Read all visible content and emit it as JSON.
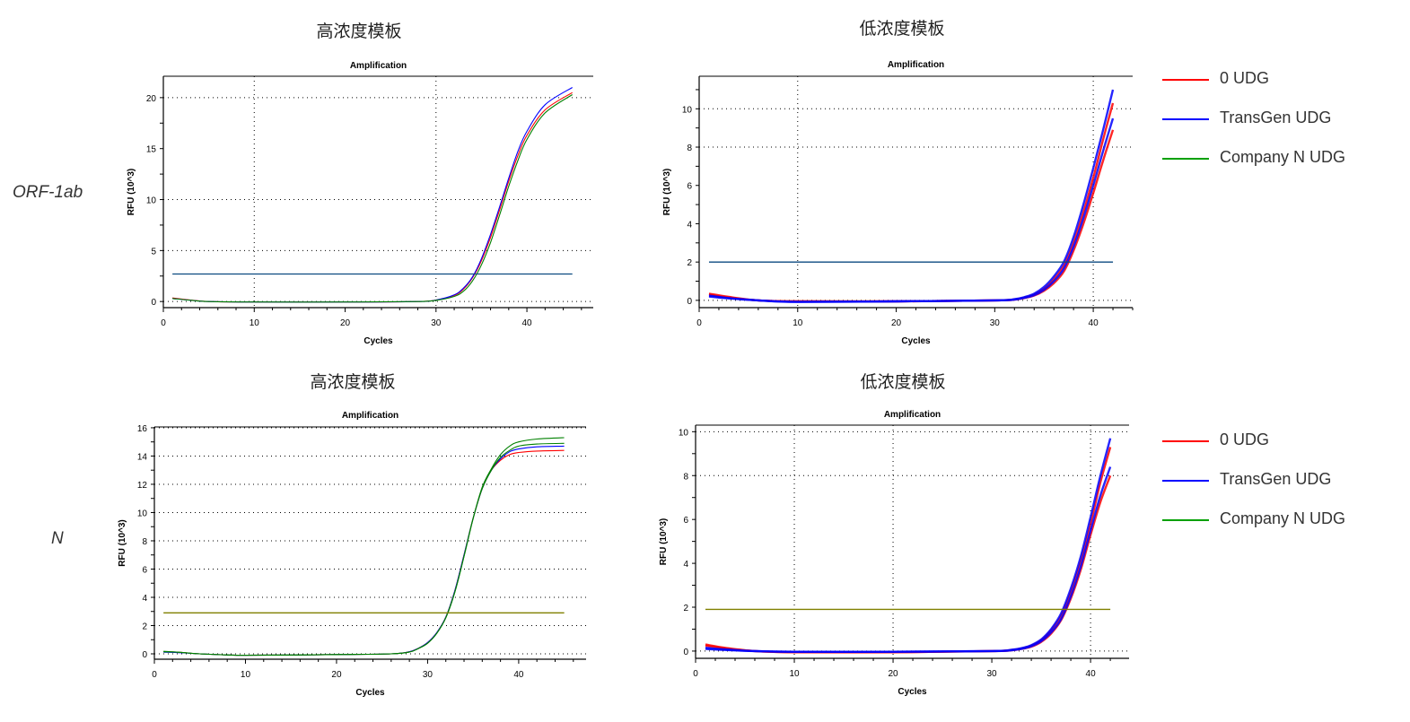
{
  "titles": {
    "high": "高浓度模板",
    "low": "低浓度模板"
  },
  "row_labels": [
    "ORF-1ab",
    "N"
  ],
  "legend": [
    {
      "label": "0 UDG",
      "color": "#ff0000"
    },
    {
      "label": "TransGen UDG",
      "color": "#0000ff"
    },
    {
      "label": "Company N UDG",
      "color": "#00a000"
    }
  ],
  "chart_data": [
    {
      "type": "line",
      "title": "Amplification",
      "xlabel": "Cycles",
      "ylabel": "RFU (10^3)",
      "section_title": "高浓度模板",
      "row": "ORF-1ab",
      "xlim": [
        0,
        47.3
      ],
      "ylim": [
        -0.6,
        22.1
      ],
      "xticks": [
        0,
        10,
        20,
        30,
        40
      ],
      "yticks": [
        0,
        5,
        10,
        15,
        20
      ],
      "xgrid": [
        10,
        30
      ],
      "ygrid": [
        0,
        5,
        10,
        20
      ],
      "threshold": 2.7,
      "threshold_color": "#0b4a80",
      "x": [
        1,
        3,
        5,
        10,
        20,
        28,
        30,
        32,
        33,
        34,
        35,
        36,
        37,
        38,
        39,
        40,
        42,
        45
      ],
      "series": [
        {
          "color": "#ff0000",
          "replicates": [
            [
              0.35,
              0.15,
              0,
              -0.05,
              -0.05,
              0,
              0.15,
              0.6,
              1.2,
              2.3,
              4.0,
              6.3,
              9.0,
              11.8,
              14.3,
              16.3,
              18.8,
              20.5
            ]
          ]
        },
        {
          "color": "#0000ff",
          "replicates": [
            [
              0.3,
              0.12,
              0,
              -0.05,
              -0.05,
              0,
              0.15,
              0.65,
              1.3,
              2.4,
              4.2,
              6.6,
              9.3,
              12.1,
              14.7,
              16.7,
              19.3,
              21.0
            ]
          ]
        },
        {
          "color": "#008000",
          "replicates": [
            [
              0.3,
              0.12,
              0,
              -0.05,
              -0.05,
              0,
              0.12,
              0.5,
              1.0,
              2.0,
              3.6,
              5.8,
              8.5,
              11.3,
              13.8,
              15.9,
              18.5,
              20.3
            ]
          ]
        }
      ]
    },
    {
      "type": "line",
      "title": "Amplification",
      "xlabel": "Cycles",
      "ylabel": "RFU (10^3)",
      "section_title": "低浓度模板",
      "row": "ORF-1ab",
      "xlim": [
        0,
        44
      ],
      "ylim": [
        -0.38,
        11.7
      ],
      "xticks": [
        0,
        10,
        20,
        30,
        40
      ],
      "yticks": [
        0,
        2,
        4,
        6,
        8,
        10
      ],
      "xgrid": [
        10,
        40
      ],
      "ygrid": [
        0,
        8,
        10
      ],
      "threshold": 2.0,
      "threshold_color": "#0b4a80",
      "x": [
        1,
        3,
        6,
        10,
        20,
        30,
        32,
        33,
        34,
        35,
        36,
        37,
        38,
        39,
        40,
        41,
        42
      ],
      "series": [
        {
          "color": "#ff0000",
          "replicates": [
            [
              0.3,
              0.15,
              0,
              -0.05,
              -0.05,
              0,
              0.05,
              0.15,
              0.3,
              0.6,
              1.1,
              1.8,
              3.0,
              4.6,
              6.4,
              8.4,
              10.3
            ],
            [
              0.35,
              0.18,
              0,
              -0.05,
              -0.05,
              0,
              0.04,
              0.12,
              0.25,
              0.5,
              0.9,
              1.5,
              2.6,
              4.0,
              5.6,
              7.3,
              8.9
            ]
          ]
        },
        {
          "color": "#0000ff",
          "replicates": [
            [
              0.25,
              0.12,
              0,
              -0.08,
              -0.05,
              0,
              0.06,
              0.17,
              0.35,
              0.7,
              1.25,
              2.0,
              3.3,
              5.0,
              6.9,
              8.9,
              11.0
            ],
            [
              0.2,
              0.1,
              0,
              -0.08,
              -0.05,
              0,
              0.04,
              0.13,
              0.27,
              0.55,
              1.0,
              1.65,
              2.8,
              4.3,
              6.0,
              7.8,
              9.5
            ]
          ]
        }
      ]
    },
    {
      "type": "line",
      "title": "Amplification",
      "xlabel": "Cycles",
      "ylabel": "RFU (10^3)",
      "section_title": "高浓度模板",
      "row": "N",
      "xlim": [
        0,
        47.4
      ],
      "ylim": [
        -0.38,
        16.06
      ],
      "xticks": [
        0,
        10,
        20,
        30,
        40
      ],
      "yticks": [
        0,
        2,
        4,
        6,
        8,
        10,
        12,
        14,
        16
      ],
      "xgrid": [],
      "ygrid": [
        0,
        2,
        4,
        6,
        8,
        10,
        12,
        14,
        16
      ],
      "threshold": 2.9,
      "threshold_color": "#808000",
      "x": [
        1,
        3,
        5,
        10,
        20,
        26,
        28,
        29,
        30,
        31,
        32,
        33,
        34,
        35,
        36,
        37,
        38,
        39,
        40,
        42,
        45
      ],
      "series": [
        {
          "color": "#ff0000",
          "replicates": [
            [
              0.15,
              0.1,
              0,
              -0.1,
              -0.05,
              0,
              0.15,
              0.4,
              0.8,
              1.5,
              2.6,
              4.5,
              7.0,
              9.6,
              11.7,
              13.0,
              13.7,
              14.1,
              14.25,
              14.35,
              14.4
            ]
          ]
        },
        {
          "color": "#0000ff",
          "replicates": [
            [
              0.12,
              0.08,
              0,
              -0.1,
              -0.05,
              0,
              0.15,
              0.4,
              0.8,
              1.5,
              2.6,
              4.5,
              7.0,
              9.6,
              11.7,
              13.0,
              13.8,
              14.3,
              14.5,
              14.65,
              14.7
            ]
          ]
        },
        {
          "color": "#008000",
          "replicates": [
            [
              0.18,
              0.1,
              0,
              -0.1,
              -0.05,
              0,
              0.13,
              0.38,
              0.75,
              1.45,
              2.55,
              4.4,
              6.9,
              9.6,
              11.8,
              13.1,
              14.1,
              14.7,
              15.0,
              15.2,
              15.3
            ],
            [
              0.15,
              0.1,
              0,
              -0.1,
              -0.05,
              0,
              0.13,
              0.38,
              0.75,
              1.45,
              2.55,
              4.4,
              6.9,
              9.6,
              11.7,
              13.0,
              13.9,
              14.4,
              14.7,
              14.85,
              14.9
            ]
          ]
        }
      ]
    },
    {
      "type": "line",
      "title": "Amplification",
      "xlabel": "Cycles",
      "ylabel": "RFU (10^3)",
      "section_title": "低浓度模板",
      "row": "N",
      "xlim": [
        0,
        43.9
      ],
      "ylim": [
        -0.33,
        10.3
      ],
      "xticks": [
        0,
        10,
        20,
        30,
        40
      ],
      "yticks": [
        0,
        2,
        4,
        6,
        8,
        10
      ],
      "xgrid": [
        10,
        20,
        40
      ],
      "ygrid": [
        0,
        8,
        10
      ],
      "threshold": 1.9,
      "threshold_color": "#808000",
      "x": [
        1,
        3,
        6,
        10,
        20,
        30,
        32,
        33,
        34,
        35,
        36,
        37,
        38,
        39,
        40,
        41,
        42
      ],
      "series": [
        {
          "color": "#ff0000",
          "replicates": [
            [
              0.25,
              0.12,
              0,
              -0.05,
              -0.05,
              0,
              0.05,
              0.12,
              0.25,
              0.5,
              0.95,
              1.6,
              2.7,
              4.1,
              5.8,
              7.7,
              9.3
            ],
            [
              0.3,
              0.15,
              0,
              -0.05,
              -0.05,
              0,
              0.04,
              0.1,
              0.2,
              0.42,
              0.8,
              1.4,
              2.4,
              3.7,
              5.3,
              6.8,
              8.0
            ]
          ]
        },
        {
          "color": "#0000ff",
          "replicates": [
            [
              0.15,
              0.08,
              0,
              -0.03,
              -0.03,
              0,
              0.06,
              0.13,
              0.27,
              0.53,
              1.0,
              1.7,
              2.85,
              4.3,
              6.1,
              8.0,
              9.7
            ],
            [
              0.1,
              0.05,
              0,
              -0.03,
              -0.03,
              0,
              0.04,
              0.1,
              0.22,
              0.45,
              0.85,
              1.45,
              2.5,
              3.85,
              5.5,
              7.1,
              8.4
            ]
          ]
        }
      ]
    }
  ]
}
